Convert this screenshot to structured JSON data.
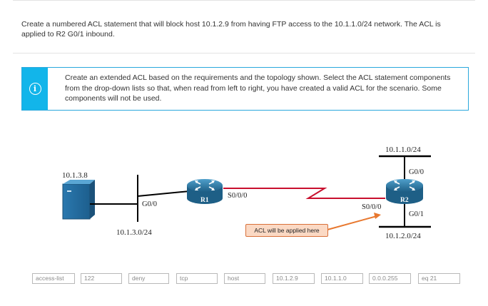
{
  "instructions": "Create a numbered ACL statement that will block host 10.1.2.9 from having FTP access to the 10.1.1.0/24 network. The ACL is applied to R2 G0/1 inbound.",
  "note": {
    "icon": "info-icon",
    "text": "Create an extended ACL based on the requirements and the topology shown. Select the ACL statement components from the drop-down lists so that, when read from left to right, you have created a valid ACL for the scenario. Some components will not be used."
  },
  "topology": {
    "host_ip": "10.1.3.8",
    "r1": {
      "name": "R1",
      "lan_if": "G0/0",
      "wan_if": "S0/0/0",
      "lan_net": "10.1.3.0/24"
    },
    "r2": {
      "name": "R2",
      "wan_if": "S0/0/0",
      "g00_if": "G0/0",
      "g01_if": "G0/1",
      "g00_net": "10.1.1.0/24",
      "g01_net": "10.1.2.0/24"
    },
    "callout": "ACL will be applied here",
    "colors": {
      "router": "#2f7aa6",
      "serial_link": "#c8102e",
      "callout_arrow": "#e8782f",
      "server": "#2f7fb3"
    }
  },
  "components": [
    {
      "label": "access-list"
    },
    {
      "label": "122"
    },
    {
      "label": "deny"
    },
    {
      "label": "tcp"
    },
    {
      "label": "host"
    },
    {
      "label": "10.1.2.9"
    },
    {
      "label": "10.1.1.0"
    },
    {
      "label": "0.0.0.255"
    },
    {
      "label": "eq 21"
    }
  ]
}
